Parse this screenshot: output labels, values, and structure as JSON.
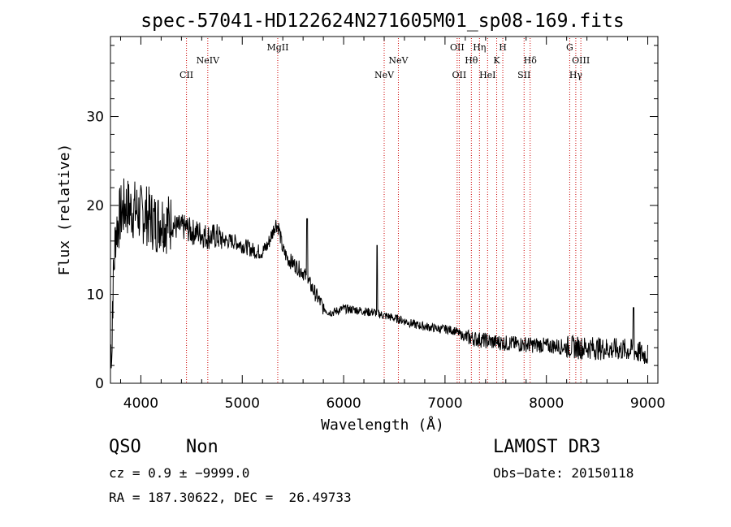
{
  "chart_data": {
    "type": "line",
    "title": "spec-57041-HD122624N271605M01_sp08-169.fits",
    "xlabel": "Wavelength (Å)",
    "ylabel": "Flux (relative)",
    "xlim": [
      3700,
      9100
    ],
    "ylim": [
      0,
      39
    ],
    "xticks": [
      4000,
      5000,
      6000,
      7000,
      8000,
      9000
    ],
    "yticks": [
      0,
      10,
      20,
      30
    ],
    "grid": false,
    "line_color": "#000000",
    "marker_color": "#cc0000",
    "lines": [
      {
        "label": "CII",
        "wavelength": 4450,
        "label_row": 3
      },
      {
        "label": "NeIV",
        "wavelength": 4660,
        "label_row": 2
      },
      {
        "label": "MgII",
        "wavelength": 5350,
        "label_row": 1
      },
      {
        "label": "NeV",
        "wavelength": 6400,
        "label_row": 3
      },
      {
        "label": "NeV",
        "wavelength": 6540,
        "label_row": 2
      },
      {
        "label": "OII",
        "wavelength": 7120,
        "label_row": 1
      },
      {
        "label": "OII",
        "wavelength": 7140,
        "label_row": 3
      },
      {
        "label": "Hθ",
        "wavelength": 7260,
        "label_row": 2
      },
      {
        "label": "Hη",
        "wavelength": 7340,
        "label_row": 1
      },
      {
        "label": "HeI",
        "wavelength": 7420,
        "label_row": 3
      },
      {
        "label": "K",
        "wavelength": 7510,
        "label_row": 2
      },
      {
        "label": "H",
        "wavelength": 7570,
        "label_row": 1
      },
      {
        "label": "SII",
        "wavelength": 7780,
        "label_row": 3
      },
      {
        "label": "Hδ",
        "wavelength": 7840,
        "label_row": 2
      },
      {
        "label": "G",
        "wavelength": 8230,
        "label_row": 1
      },
      {
        "label": "Hγ",
        "wavelength": 8290,
        "label_row": 3
      },
      {
        "label": "OIII",
        "wavelength": 8340,
        "label_row": 2
      }
    ],
    "spectrum": {
      "x": [
        3700,
        3750,
        3800,
        3850,
        3900,
        3950,
        4000,
        4050,
        4100,
        4150,
        4200,
        4250,
        4300,
        4350,
        4400,
        4450,
        4500,
        4550,
        4600,
        4650,
        4700,
        4750,
        4800,
        4850,
        4900,
        4950,
        5000,
        5050,
        5100,
        5150,
        5200,
        5250,
        5300,
        5330,
        5360,
        5400,
        5450,
        5500,
        5550,
        5600,
        5650,
        5700,
        5750,
        5800,
        5850,
        5900,
        5950,
        6000,
        6050,
        6100,
        6150,
        6200,
        6250,
        6300,
        6350,
        6400,
        6450,
        6500,
        6550,
        6600,
        6650,
        6700,
        6750,
        6800,
        6850,
        6900,
        6950,
        7000,
        7050,
        7100,
        7150,
        7200,
        7250,
        7300,
        7350,
        7400,
        7450,
        7500,
        7550,
        7600,
        7650,
        7700,
        7750,
        7800,
        7850,
        7900,
        7950,
        8000,
        8050,
        8100,
        8150,
        8200,
        8250,
        8300,
        8350,
        8400,
        8450,
        8500,
        8550,
        8600,
        8650,
        8700,
        8750,
        8800,
        8850,
        8900,
        8950,
        9000
      ],
      "y": [
        4,
        17,
        19,
        20,
        19.5,
        19.5,
        19,
        19,
        18.5,
        18,
        18.5,
        18,
        18,
        17.5,
        17.5,
        17.5,
        17,
        17,
        16.8,
        16.5,
        16.5,
        16.5,
        16.2,
        16,
        16,
        15.8,
        15.5,
        15.3,
        15,
        14.8,
        14.8,
        15.5,
        17,
        18,
        17.5,
        15,
        14,
        13.5,
        13,
        12.5,
        11.5,
        10.5,
        9.5,
        8.5,
        8,
        8,
        8.2,
        8.4,
        8.3,
        8.3,
        8.2,
        8.1,
        8,
        8,
        7.8,
        7.6,
        7.5,
        7.3,
        7.2,
        7,
        6.8,
        6.6,
        6.5,
        6.4,
        6.3,
        6.2,
        6.1,
        6.1,
        6,
        5.9,
        5.5,
        5.2,
        5.1,
        5,
        4.9,
        4.8,
        4.7,
        4.6,
        4.6,
        4.5,
        4.5,
        4.4,
        4.4,
        4.4,
        4.3,
        4.3,
        4.3,
        4.2,
        4.2,
        4.2,
        4.1,
        4.1,
        4.1,
        4,
        4,
        4,
        4,
        3.9,
        3.9,
        3.9,
        3.8,
        3.8,
        3.8,
        3.7,
        3.7,
        3.5,
        3.3,
        3.2
      ]
    },
    "spikes": [
      {
        "x": 6330,
        "y": 15.5
      },
      {
        "x": 5640,
        "y": 18.5
      },
      {
        "x": 8860,
        "y": 8.5
      }
    ]
  },
  "info": {
    "class": "QSO",
    "subclass": "Non",
    "survey": "LAMOST DR3",
    "cz": "cz = 0.9 ± −9999.0",
    "obs_date": "Obs−Date: 20150118",
    "coords": "RA = 187.30622, DEC =  26.49733"
  }
}
